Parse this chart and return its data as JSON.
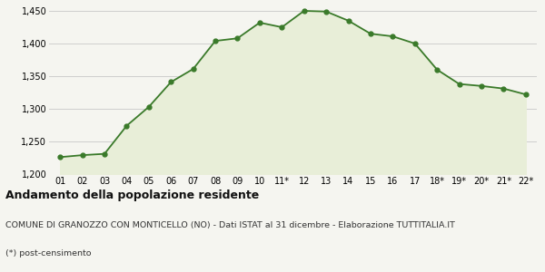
{
  "x_labels": [
    "01",
    "02",
    "03",
    "04",
    "05",
    "06",
    "07",
    "08",
    "09",
    "10",
    "11*",
    "12",
    "13",
    "14",
    "15",
    "16",
    "17",
    "18*",
    "19*",
    "20*",
    "21*",
    "22*"
  ],
  "y_values": [
    1226,
    1229,
    1231,
    1274,
    1303,
    1341,
    1361,
    1404,
    1408,
    1432,
    1425,
    1450,
    1449,
    1435,
    1415,
    1411,
    1400,
    1360,
    1338,
    1335,
    1331,
    1322
  ],
  "line_color": "#3a7a2a",
  "fill_color": "#e8eed8",
  "marker_color": "#3a7a2a",
  "bg_color": "#f5f5f0",
  "grid_color": "#c8c8c8",
  "ylim": [
    1200,
    1450
  ],
  "yticks": [
    1200,
    1250,
    1300,
    1350,
    1400,
    1450
  ],
  "title_bold": "Andamento della popolazione residente",
  "subtitle1": "COMUNE DI GRANOZZO CON MONTICELLO (NO) - Dati ISTAT al 31 dicembre - Elaborazione TUTTITALIA.IT",
  "subtitle2": "(*) post-censimento",
  "title_fontsize": 9,
  "subtitle_fontsize": 6.8,
  "axis_fontsize": 7
}
